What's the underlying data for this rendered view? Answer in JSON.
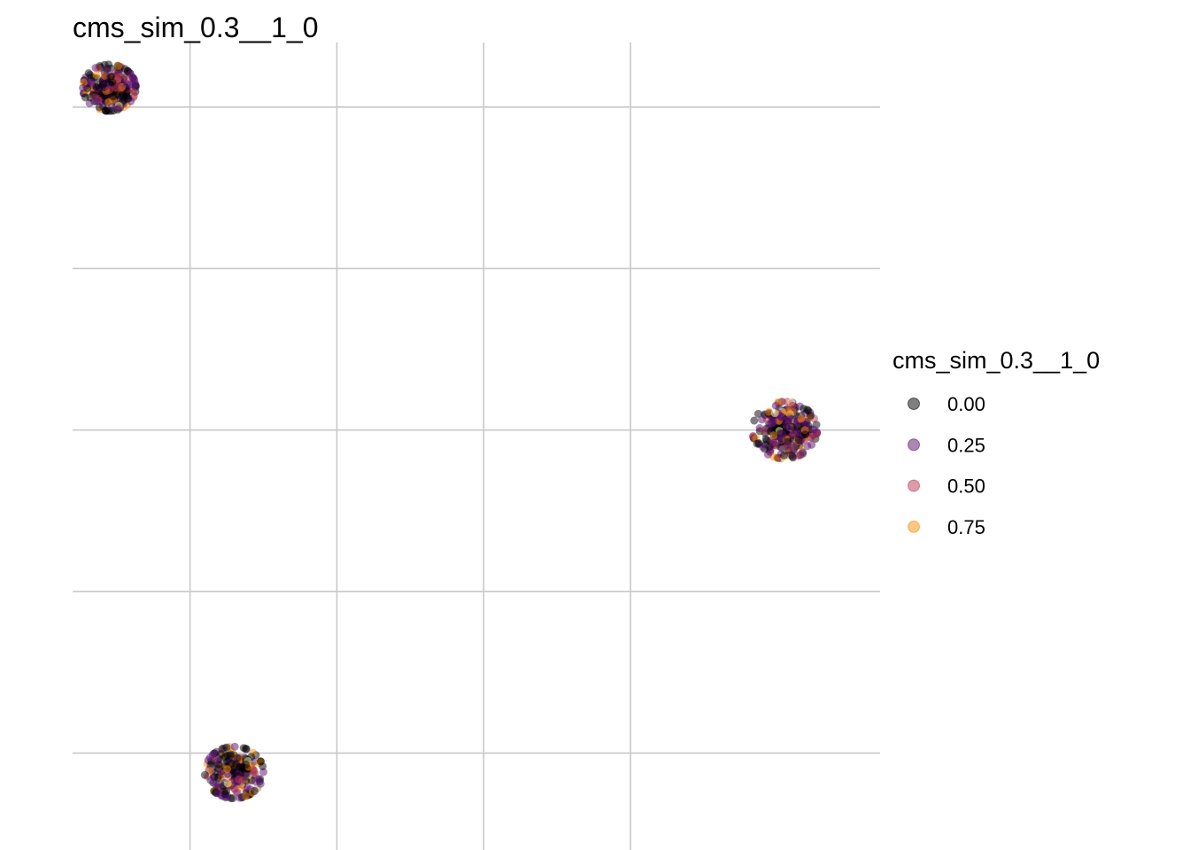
{
  "chart_data": {
    "type": "scatter",
    "title": "cms_sim_0.3__1_0",
    "xlabel": "",
    "ylabel": "",
    "grid": true,
    "axis_tick_labels": false,
    "legend": {
      "title": "cms_sim_0.3__1_0",
      "placement": "right",
      "entries": [
        {
          "label": "0.00",
          "value": 0.0
        },
        {
          "label": "0.25",
          "value": 0.25
        },
        {
          "label": "0.50",
          "value": 0.5
        },
        {
          "label": "0.75",
          "value": 0.75
        }
      ]
    },
    "palette": {
      "0.00": "#000004",
      "0.25": "#57106e",
      "0.50": "#bc3754",
      "0.75": "#f98e09",
      "1.00": "#fcffa4"
    },
    "point_alpha": 0.5,
    "clusters": [
      {
        "center_x": -4.6,
        "center_y": 5.3,
        "spread": 0.18,
        "n_points": 260
      },
      {
        "center_x": 4.6,
        "center_y": 0.0,
        "spread": 0.22,
        "n_points": 300
      },
      {
        "center_x": -2.9,
        "center_y": -5.3,
        "spread": 0.2,
        "n_points": 240
      }
    ],
    "xlim": [
      -5.1,
      5.9
    ],
    "ylim": [
      -6.5,
      6.0
    ],
    "x_gridlines": [
      -3.5,
      -1.5,
      0.5,
      2.5
    ],
    "y_gridlines": [
      -5.0,
      -2.5,
      0.0,
      2.5,
      5.0
    ]
  }
}
